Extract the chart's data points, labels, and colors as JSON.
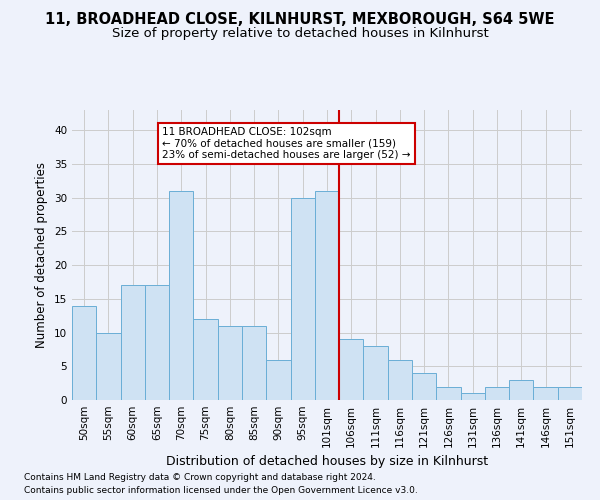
{
  "title1": "11, BROADHEAD CLOSE, KILNHURST, MEXBOROUGH, S64 5WE",
  "title2": "Size of property relative to detached houses in Kilnhurst",
  "xlabel": "Distribution of detached houses by size in Kilnhurst",
  "ylabel": "Number of detached properties",
  "footnote1": "Contains HM Land Registry data © Crown copyright and database right 2024.",
  "footnote2": "Contains public sector information licensed under the Open Government Licence v3.0.",
  "categories": [
    "50sqm",
    "55sqm",
    "60sqm",
    "65sqm",
    "70sqm",
    "75sqm",
    "80sqm",
    "85sqm",
    "90sqm",
    "95sqm",
    "101sqm",
    "106sqm",
    "111sqm",
    "116sqm",
    "121sqm",
    "126sqm",
    "131sqm",
    "136sqm",
    "141sqm",
    "146sqm",
    "151sqm"
  ],
  "values": [
    14,
    10,
    17,
    17,
    31,
    12,
    11,
    11,
    6,
    30,
    31,
    9,
    8,
    6,
    4,
    2,
    1,
    2,
    3,
    2,
    2
  ],
  "bar_color": "#cfe2f3",
  "bar_edge_color": "#6aaed6",
  "vline_color": "#cc0000",
  "annotation_text": "11 BROADHEAD CLOSE: 102sqm\n← 70% of detached houses are smaller (159)\n23% of semi-detached houses are larger (52) →",
  "annotation_box_color": "white",
  "annotation_box_edge_color": "#cc0000",
  "ylim": [
    0,
    43
  ],
  "yticks": [
    0,
    5,
    10,
    15,
    20,
    25,
    30,
    35,
    40
  ],
  "grid_color": "#cccccc",
  "bg_color": "#eef2fb",
  "title1_fontsize": 10.5,
  "title2_fontsize": 9.5,
  "xlabel_fontsize": 9,
  "ylabel_fontsize": 8.5,
  "tick_fontsize": 7.5,
  "footnote_fontsize": 6.5
}
